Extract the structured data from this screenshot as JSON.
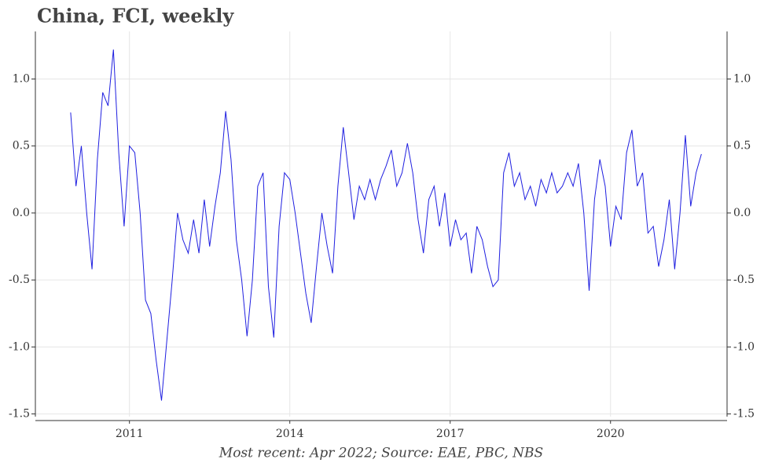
{
  "chart_data": {
    "type": "line",
    "title": "China, FCI, weekly",
    "note": "Most recent: Apr 2022; Source: EAE, PBC, NBS",
    "x": [
      2009.9,
      2010.0,
      2010.1,
      2010.2,
      2010.3,
      2010.4,
      2010.5,
      2010.6,
      2010.7,
      2010.8,
      2010.9,
      2011.0,
      2011.1,
      2011.2,
      2011.3,
      2011.4,
      2011.5,
      2011.6,
      2011.7,
      2011.8,
      2011.9,
      2012.0,
      2012.1,
      2012.2,
      2012.3,
      2012.4,
      2012.5,
      2012.6,
      2012.7,
      2012.8,
      2012.9,
      2013.0,
      2013.1,
      2013.2,
      2013.3,
      2013.4,
      2013.5,
      2013.6,
      2013.7,
      2013.8,
      2013.9,
      2014.0,
      2014.1,
      2014.2,
      2014.3,
      2014.4,
      2014.5,
      2014.6,
      2014.7,
      2014.8,
      2014.9,
      2015.0,
      2015.1,
      2015.2,
      2015.3,
      2015.4,
      2015.5,
      2015.6,
      2015.7,
      2015.8,
      2015.9,
      2016.0,
      2016.1,
      2016.2,
      2016.3,
      2016.4,
      2016.5,
      2016.6,
      2016.7,
      2016.8,
      2016.9,
      2017.0,
      2017.1,
      2017.2,
      2017.3,
      2017.4,
      2017.5,
      2017.6,
      2017.7,
      2017.8,
      2017.9,
      2018.0,
      2018.1,
      2018.2,
      2018.3,
      2018.4,
      2018.5,
      2018.6,
      2018.7,
      2018.8,
      2018.9,
      2019.0,
      2019.1,
      2019.2,
      2019.3,
      2019.4,
      2019.5,
      2019.6,
      2019.7,
      2019.8,
      2019.9,
      2020.0,
      2020.1,
      2020.2,
      2020.3,
      2020.4,
      2020.5,
      2020.6,
      2020.7,
      2020.8,
      2020.9,
      2021.0,
      2021.1,
      2021.2,
      2021.3,
      2021.4,
      2021.5,
      2021.6,
      2021.7
    ],
    "series": [
      {
        "color": "#1f1fe0",
        "values": [
          0.75,
          0.2,
          0.5,
          0.0,
          -0.42,
          0.4,
          0.9,
          0.8,
          1.22,
          0.45,
          -0.1,
          0.5,
          0.45,
          0.0,
          -0.65,
          -0.75,
          -1.1,
          -1.4,
          -0.95,
          -0.5,
          0.0,
          -0.2,
          -0.3,
          -0.05,
          -0.3,
          0.1,
          -0.25,
          0.05,
          0.3,
          0.76,
          0.4,
          -0.2,
          -0.5,
          -0.92,
          -0.5,
          0.2,
          0.3,
          -0.55,
          -0.93,
          -0.1,
          0.3,
          0.25,
          0.0,
          -0.3,
          -0.6,
          -0.82,
          -0.4,
          0.0,
          -0.25,
          -0.45,
          0.2,
          0.64,
          0.3,
          -0.05,
          0.2,
          0.1,
          0.25,
          0.1,
          0.25,
          0.35,
          0.47,
          0.2,
          0.3,
          0.52,
          0.3,
          -0.05,
          -0.3,
          0.1,
          0.2,
          -0.1,
          0.15,
          -0.25,
          -0.05,
          -0.2,
          -0.15,
          -0.45,
          -0.1,
          -0.2,
          -0.4,
          -0.55,
          -0.5,
          0.3,
          0.45,
          0.2,
          0.3,
          0.1,
          0.2,
          0.05,
          0.25,
          0.15,
          0.3,
          0.15,
          0.2,
          0.3,
          0.2,
          0.37,
          0.0,
          -0.58,
          0.1,
          0.4,
          0.2,
          -0.25,
          0.05,
          -0.05,
          0.45,
          0.62,
          0.2,
          0.3,
          -0.15,
          -0.1,
          -0.4,
          -0.2,
          0.1,
          -0.42,
          0.0,
          0.58,
          0.05,
          0.3,
          0.44
        ]
      }
    ],
    "xlim": [
      2009.24,
      2022.18
    ],
    "xticks": [
      2011,
      2014,
      2017,
      2020
    ],
    "ylim": [
      -1.52,
      1.355
    ],
    "yticks": [
      {
        "value": 1,
        "label": "1.0"
      },
      {
        "value": 0.5,
        "label": "0.5"
      },
      {
        "value": 0,
        "label": "0.0"
      },
      {
        "value": -0.5,
        "label": "-0.5"
      },
      {
        "value": -1,
        "label": "-1.0"
      },
      {
        "value": -1.5,
        "label": "-1.5"
      }
    ],
    "grid": true
  }
}
